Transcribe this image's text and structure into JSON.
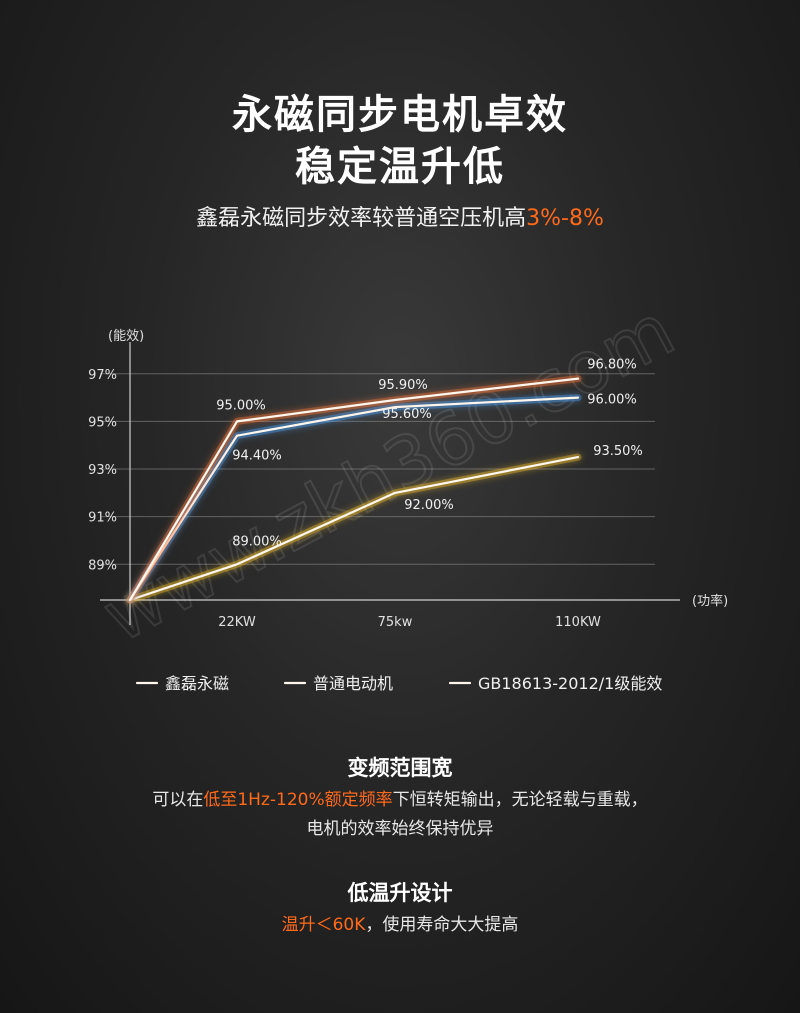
{
  "header": {
    "title_line1": "永磁同步电机卓效",
    "title_line2": "稳定温升低",
    "subtitle_prefix": "鑫磊永磁同步效率较普通空压机高",
    "subtitle_highlight": "3%-8%"
  },
  "chart_data": {
    "type": "line",
    "ylabel": "(能效)",
    "xlabel": "(功率)",
    "categories": [
      "",
      "22KW",
      "75kw",
      "110KW"
    ],
    "yticks": [
      "89%",
      "91%",
      "93%",
      "95%",
      "97%"
    ],
    "ylim": [
      87.5,
      98
    ],
    "grid": true,
    "legend_position": "bottom",
    "series": [
      {
        "name": "鑫磊永磁",
        "color": "#ff7a3d",
        "values": [
          87.5,
          95.0,
          95.9,
          96.8
        ],
        "labels": [
          "",
          "95.00%",
          "95.90%",
          "96.80%"
        ]
      },
      {
        "name": "普通电动机",
        "color": "#ffc82e",
        "values": [
          87.5,
          89.0,
          92.0,
          93.5
        ],
        "labels": [
          "",
          "89.00%",
          "92.00%",
          "93.50%"
        ]
      },
      {
        "name": "GB18613-2012/1级能效",
        "color": "#4fa8ff",
        "values": [
          87.5,
          94.4,
          95.6,
          96.0
        ],
        "labels": [
          "",
          "94.40%",
          "95.60%",
          "96.00%"
        ]
      }
    ]
  },
  "watermark": "www.zkh360.com",
  "features": [
    {
      "title": "变频范围宽",
      "text_before": "可以在",
      "text_highlight": "低至1Hz-120%额定频率",
      "text_after": "下恒转矩输出，无论轻载与重载，",
      "text_line2": "电机的效率始终保持优异"
    },
    {
      "title": "低温升设计",
      "text_highlight": "温升＜60K",
      "text_after": "，使用寿命大大提高"
    }
  ]
}
